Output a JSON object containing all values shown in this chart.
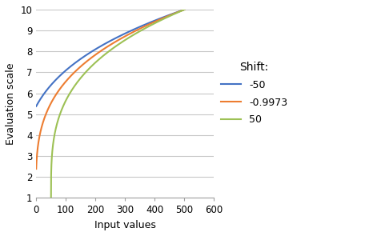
{
  "title": "",
  "xlabel": "Input values",
  "ylabel": "Evaluation scale",
  "xlim": [
    0,
    600
  ],
  "ylim": [
    1,
    10
  ],
  "yticks": [
    1,
    2,
    3,
    4,
    5,
    6,
    7,
    8,
    9,
    10
  ],
  "xticks": [
    0,
    100,
    200,
    300,
    400,
    500,
    600
  ],
  "legend_title": "Shift:",
  "series": [
    {
      "shift": -50,
      "color": "#4472C4",
      "label": "-50"
    },
    {
      "shift": -0.9973,
      "color": "#ED7D31",
      "label": "-0.9973"
    },
    {
      "shift": 50,
      "color": "#9DC155",
      "label": "50"
    }
  ],
  "y_min": 1,
  "y_max": 10,
  "x_end": 500,
  "power": 0.3,
  "background_color": "#FFFFFF",
  "grid_color": "#C8C8C8"
}
